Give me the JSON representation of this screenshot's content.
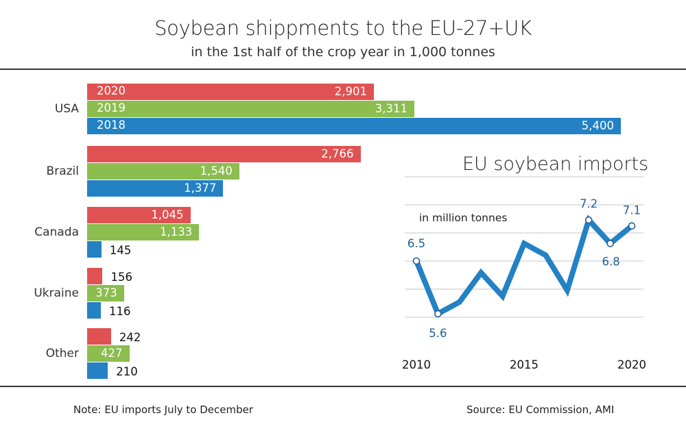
{
  "header": {
    "title": "Soybean shippments to the EU-27+UK",
    "subtitle": "in the 1st half of the crop year in 1,000 tonnes"
  },
  "colors": {
    "2020": "#e05252",
    "2019": "#8bbd4f",
    "2018": "#2381c4",
    "line": "#2381c4",
    "label": "#1f5f97"
  },
  "footer": {
    "note": "Note: EU imports July to December",
    "source": "Source:  EU Commission, AMI"
  },
  "inset": {
    "title": "EU soybean imports",
    "unit": "in million tonnes",
    "point_labels": {
      "2010": "6.5",
      "2011": "5.6",
      "2018": "7.2",
      "2019": "6.8",
      "2020": "7.1"
    },
    "x_ticks": [
      "2010",
      "2015",
      "2020"
    ]
  },
  "chart_data": [
    {
      "type": "bar",
      "orientation": "horizontal",
      "title": "Soybean shippments to the EU-27+UK",
      "subtitle": "in the 1st half of the crop year in 1,000 tonnes",
      "categories": [
        "USA",
        "Brazil",
        "Canada",
        "Ukraine",
        "Other"
      ],
      "series": [
        {
          "name": "2020",
          "color": "#e05252",
          "values": [
            2901,
            2766,
            1045,
            156,
            242
          ],
          "labels": [
            "2,901",
            "2,766",
            "1,045",
            "156",
            "242"
          ]
        },
        {
          "name": "2019",
          "color": "#8bbd4f",
          "values": [
            3311,
            1540,
            1133,
            373,
            427
          ],
          "labels": [
            "3,311",
            "1,540",
            "1,133",
            "373",
            "427"
          ]
        },
        {
          "name": "2018",
          "color": "#2381c4",
          "values": [
            5400,
            1377,
            145,
            116,
            210
          ],
          "labels": [
            "5,400",
            "1,377",
            "145",
            "116",
            "210"
          ]
        }
      ],
      "xlabel": "",
      "ylabel": "",
      "grid": false,
      "legend": "inline in USA bars"
    },
    {
      "type": "line",
      "title": "EU soybean imports",
      "ylabel": "in million tonnes",
      "x": [
        2010,
        2011,
        2012,
        2013,
        2014,
        2015,
        2016,
        2017,
        2018,
        2019,
        2020
      ],
      "series": [
        {
          "name": "EU soybean imports",
          "color": "#2381c4",
          "values": [
            6.5,
            5.6,
            5.8,
            6.3,
            5.9,
            6.8,
            6.6,
            6.0,
            7.2,
            6.8,
            7.1
          ]
        }
      ],
      "labeled_points": {
        "2010": 6.5,
        "2011": 5.6,
        "2018": 7.2,
        "2019": 6.8,
        "2020": 7.1
      },
      "x_ticks": [
        2010,
        2015,
        2020
      ],
      "grid": true,
      "ylim": [
        5.5,
        7.5
      ]
    }
  ]
}
